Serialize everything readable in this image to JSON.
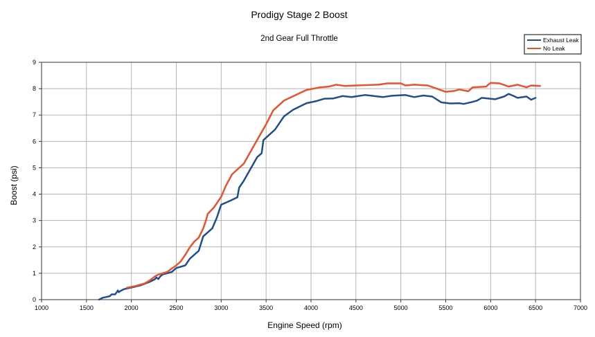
{
  "chart_data": {
    "type": "line",
    "title": "Prodigy Stage 2 Boost",
    "subtitle": "2nd Gear Full Throttle",
    "xlabel": "Engine Speed (rpm)",
    "ylabel": "Boost (psi)",
    "xlim": [
      1000,
      7000
    ],
    "ylim": [
      0,
      9
    ],
    "x_ticks": [
      "1000",
      "1500",
      "2000",
      "2500",
      "3000",
      "3500",
      "4000",
      "4500",
      "5000",
      "5500",
      "6000",
      "6500",
      "7000"
    ],
    "y_ticks": [
      "0",
      "1",
      "2",
      "3",
      "4",
      "5",
      "6",
      "7",
      "8",
      "9"
    ],
    "grid": true,
    "legend_position": "top-right",
    "series": [
      {
        "name": "Exhaust Leak",
        "color": "#1f4e8c",
        "points": [
          [
            1640,
            0.0
          ],
          [
            1680,
            0.07
          ],
          [
            1720,
            0.1
          ],
          [
            1760,
            0.13
          ],
          [
            1780,
            0.2
          ],
          [
            1820,
            0.2
          ],
          [
            1850,
            0.35
          ],
          [
            1860,
            0.28
          ],
          [
            1880,
            0.33
          ],
          [
            1920,
            0.4
          ],
          [
            1960,
            0.43
          ],
          [
            2000,
            0.46
          ],
          [
            2100,
            0.54
          ],
          [
            2200,
            0.67
          ],
          [
            2260,
            0.77
          ],
          [
            2280,
            0.84
          ],
          [
            2300,
            0.78
          ],
          [
            2320,
            0.88
          ],
          [
            2350,
            0.96
          ],
          [
            2400,
            1.0
          ],
          [
            2450,
            1.05
          ],
          [
            2500,
            1.2
          ],
          [
            2600,
            1.3
          ],
          [
            2650,
            1.55
          ],
          [
            2700,
            1.7
          ],
          [
            2750,
            1.85
          ],
          [
            2800,
            2.4
          ],
          [
            2850,
            2.55
          ],
          [
            2900,
            2.7
          ],
          [
            2950,
            3.1
          ],
          [
            3000,
            3.6
          ],
          [
            3100,
            3.75
          ],
          [
            3180,
            3.88
          ],
          [
            3200,
            4.25
          ],
          [
            3250,
            4.5
          ],
          [
            3300,
            4.8
          ],
          [
            3400,
            5.4
          ],
          [
            3450,
            5.55
          ],
          [
            3470,
            6.05
          ],
          [
            3600,
            6.45
          ],
          [
            3700,
            6.95
          ],
          [
            3800,
            7.2
          ],
          [
            3950,
            7.45
          ],
          [
            4050,
            7.52
          ],
          [
            4150,
            7.62
          ],
          [
            4250,
            7.63
          ],
          [
            4350,
            7.72
          ],
          [
            4450,
            7.68
          ],
          [
            4600,
            7.76
          ],
          [
            4800,
            7.68
          ],
          [
            4900,
            7.73
          ],
          [
            5050,
            7.76
          ],
          [
            5150,
            7.68
          ],
          [
            5250,
            7.74
          ],
          [
            5350,
            7.7
          ],
          [
            5450,
            7.48
          ],
          [
            5550,
            7.44
          ],
          [
            5650,
            7.45
          ],
          [
            5700,
            7.42
          ],
          [
            5800,
            7.5
          ],
          [
            5850,
            7.55
          ],
          [
            5900,
            7.65
          ],
          [
            6050,
            7.6
          ],
          [
            6150,
            7.7
          ],
          [
            6200,
            7.8
          ],
          [
            6250,
            7.73
          ],
          [
            6300,
            7.65
          ],
          [
            6400,
            7.7
          ],
          [
            6450,
            7.58
          ],
          [
            6500,
            7.65
          ]
        ]
      },
      {
        "name": "No Leak",
        "color": "#e8522c",
        "points": [
          [
            1950,
            0.45
          ],
          [
            2050,
            0.52
          ],
          [
            2150,
            0.62
          ],
          [
            2200,
            0.72
          ],
          [
            2270,
            0.9
          ],
          [
            2300,
            0.95
          ],
          [
            2400,
            1.05
          ],
          [
            2450,
            1.18
          ],
          [
            2500,
            1.3
          ],
          [
            2550,
            1.45
          ],
          [
            2600,
            1.7
          ],
          [
            2650,
            1.98
          ],
          [
            2700,
            2.2
          ],
          [
            2750,
            2.35
          ],
          [
            2800,
            2.7
          ],
          [
            2830,
            3.0
          ],
          [
            2850,
            3.25
          ],
          [
            2920,
            3.5
          ],
          [
            3000,
            3.9
          ],
          [
            3050,
            4.3
          ],
          [
            3120,
            4.75
          ],
          [
            3250,
            5.15
          ],
          [
            3400,
            6.05
          ],
          [
            3500,
            6.65
          ],
          [
            3580,
            7.18
          ],
          [
            3700,
            7.55
          ],
          [
            3950,
            7.95
          ],
          [
            4100,
            8.05
          ],
          [
            4200,
            8.08
          ],
          [
            4280,
            8.15
          ],
          [
            4380,
            8.1
          ],
          [
            4500,
            8.12
          ],
          [
            4750,
            8.15
          ],
          [
            4850,
            8.2
          ],
          [
            5000,
            8.2
          ],
          [
            5050,
            8.12
          ],
          [
            5150,
            8.15
          ],
          [
            5300,
            8.12
          ],
          [
            5500,
            7.88
          ],
          [
            5600,
            7.92
          ],
          [
            5650,
            7.97
          ],
          [
            5750,
            7.9
          ],
          [
            5800,
            8.05
          ],
          [
            5950,
            8.08
          ],
          [
            6000,
            8.22
          ],
          [
            6100,
            8.2
          ],
          [
            6200,
            8.08
          ],
          [
            6300,
            8.15
          ],
          [
            6400,
            8.05
          ],
          [
            6450,
            8.12
          ],
          [
            6550,
            8.1
          ]
        ]
      }
    ]
  }
}
